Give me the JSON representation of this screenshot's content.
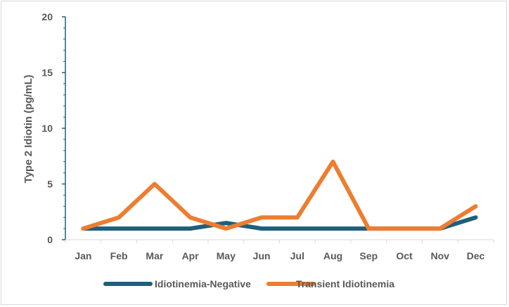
{
  "chart_data": {
    "type": "line",
    "title": "",
    "xlabel": "",
    "ylabel": "Type 2 Idiotin (pg/mL)",
    "ylim": [
      0,
      20
    ],
    "yticks": [
      0,
      5,
      10,
      15,
      20
    ],
    "categories": [
      "Jan",
      "Feb",
      "Mar",
      "Apr",
      "May",
      "Jun",
      "Jul",
      "Aug",
      "Sep",
      "Oct",
      "Nov",
      "Dec"
    ],
    "grid": false,
    "legend_position": "bottom",
    "series": [
      {
        "name": "Idiotinemia-Negative",
        "color": "#1f5f7a",
        "values": [
          1,
          1,
          1,
          1,
          1.5,
          1,
          1,
          1,
          1,
          1,
          1,
          2
        ]
      },
      {
        "name": "Transient Idiotinemia",
        "color": "#ed7d31",
        "values": [
          1,
          2,
          5,
          2,
          1,
          2,
          2,
          7,
          1,
          1,
          1,
          3
        ]
      }
    ]
  }
}
